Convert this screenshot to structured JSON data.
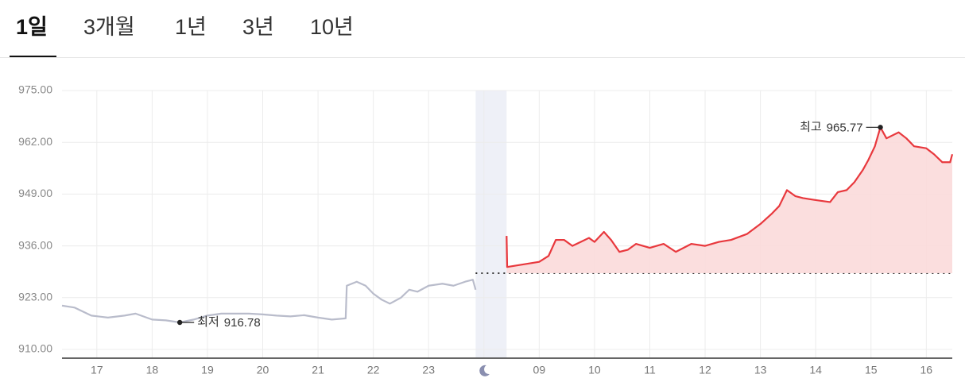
{
  "tabs": [
    "1일",
    "3개월",
    "1년",
    "3년",
    "10년"
  ],
  "chart_data": {
    "type": "line",
    "xlim": [
      -0.63,
      15.47
    ],
    "xticks": [
      {
        "value": 0,
        "label": "17"
      },
      {
        "value": 1,
        "label": "18"
      },
      {
        "value": 2,
        "label": "19"
      },
      {
        "value": 3,
        "label": "20"
      },
      {
        "value": 4,
        "label": "21"
      },
      {
        "value": 5,
        "label": "22"
      },
      {
        "value": 6,
        "label": "23"
      },
      {
        "value": 7,
        "label": null
      },
      {
        "value": 8,
        "label": "09"
      },
      {
        "value": 9,
        "label": "10"
      },
      {
        "value": 10,
        "label": "11"
      },
      {
        "value": 11,
        "label": "12"
      },
      {
        "value": 12,
        "label": "13"
      },
      {
        "value": 13,
        "label": "14"
      },
      {
        "value": 14,
        "label": "15"
      },
      {
        "value": 15,
        "label": "16"
      }
    ],
    "ylim": [
      910,
      975
    ],
    "yticks": [
      {
        "value": 910,
        "label": "910.00"
      },
      {
        "value": 923,
        "label": "923.00"
      },
      {
        "value": 936,
        "label": "936.00"
      },
      {
        "value": 949,
        "label": "949.00"
      },
      {
        "value": 962,
        "label": "962.00"
      },
      {
        "value": 975,
        "label": "975.00"
      }
    ],
    "grid": true,
    "night_band": [
      6.85,
      7.41
    ],
    "reference_line": 929.14,
    "series": [
      {
        "color": "#b9bccb",
        "fill": false,
        "x": [
          -0.63,
          -0.4,
          -0.25,
          -0.1,
          0.2,
          0.5,
          0.7,
          1.0,
          1.25,
          1.5,
          1.75,
          2.0,
          2.25,
          2.5,
          2.75,
          3.0,
          3.25,
          3.5,
          3.75,
          4.0,
          4.25,
          4.5,
          4.52,
          4.7,
          4.86,
          5.0,
          5.15,
          5.3,
          5.5,
          5.65,
          5.8,
          6.0,
          6.25,
          6.45,
          6.66,
          6.8,
          6.85
        ],
        "values": [
          921,
          920.5,
          919.5,
          918.5,
          918,
          918.5,
          919,
          917.5,
          917.3,
          916.78,
          917.5,
          918.5,
          919,
          919,
          919,
          918.8,
          918.5,
          918.3,
          918.6,
          918,
          917.5,
          917.8,
          926,
          927,
          926,
          924,
          922.5,
          921.5,
          923,
          925,
          924.5,
          926,
          926.5,
          926,
          927,
          927.5,
          925
        ]
      },
      {
        "color": "#e8383d",
        "fill": true,
        "x": [
          7.41,
          7.42,
          8.0,
          8.17,
          8.3,
          8.45,
          8.6,
          8.75,
          8.9,
          9.0,
          9.17,
          9.3,
          9.45,
          9.6,
          9.75,
          10.0,
          10.25,
          10.47,
          10.75,
          11.0,
          11.25,
          11.47,
          11.76,
          12.0,
          12.2,
          12.34,
          12.48,
          12.63,
          12.77,
          13.0,
          13.26,
          13.4,
          13.56,
          13.7,
          13.85,
          13.95,
          14.07,
          14.17,
          14.28,
          14.5,
          14.64,
          14.78,
          15.0,
          15.14,
          15.29,
          15.43,
          15.47
        ],
        "values": [
          938.5,
          930.7,
          932,
          933.5,
          937.5,
          937.5,
          936,
          937,
          938,
          937,
          939.5,
          937.5,
          934.5,
          935,
          936.5,
          935.5,
          936.5,
          934.5,
          936.5,
          936,
          937,
          937.5,
          939,
          941.5,
          944,
          946,
          950,
          948.5,
          948,
          947.5,
          947,
          949.5,
          950,
          952,
          955,
          957.5,
          961,
          965.77,
          963,
          964.5,
          963,
          961,
          960.5,
          959,
          957,
          957,
          959
        ]
      }
    ],
    "annotations": [
      {
        "label": "최저",
        "x": 1.5,
        "value": 916.78,
        "side": "right"
      },
      {
        "label": "최고",
        "x": 14.17,
        "value": 965.77,
        "side": "left"
      }
    ]
  }
}
